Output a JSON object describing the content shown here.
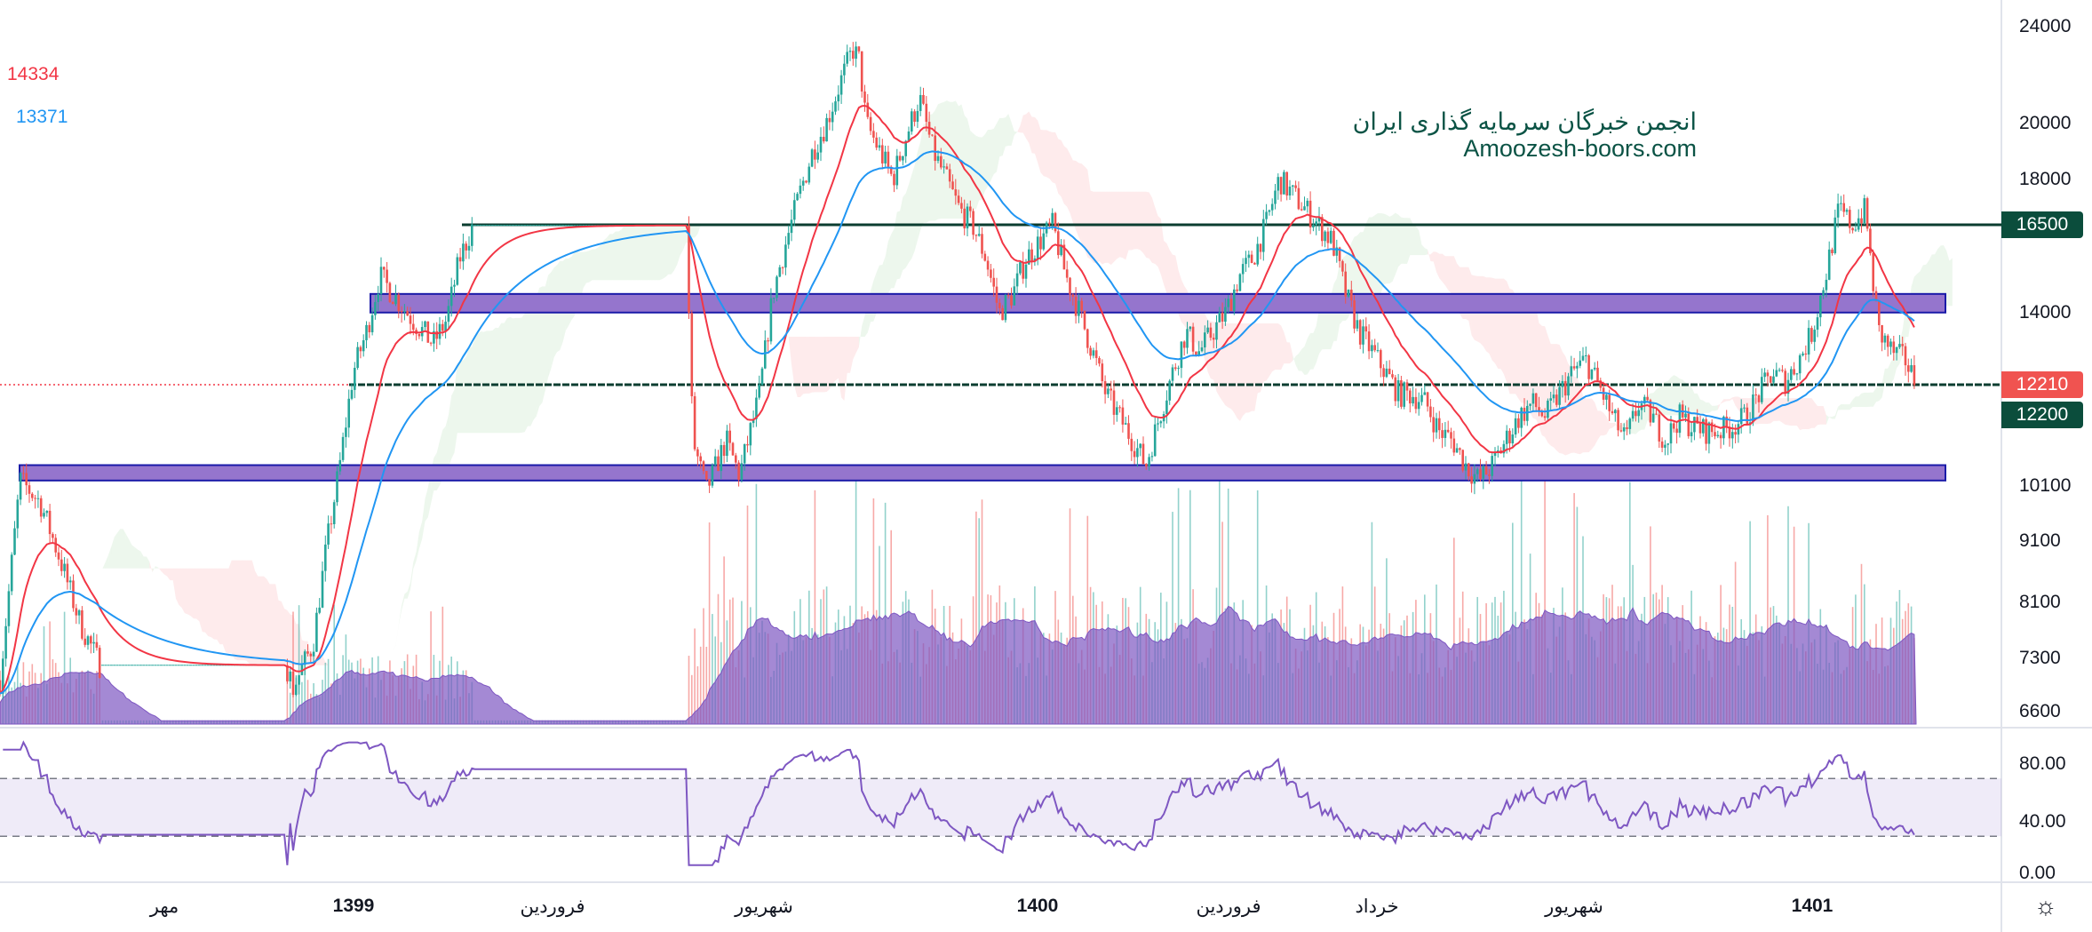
{
  "legend": {
    "ma_fast": "14334",
    "ma_slow": "13371",
    "fast_color": "#f23645",
    "slow_color": "#2196f3"
  },
  "watermark": {
    "line1": "انجمن خبرگان سرمایه گذاری ایران",
    "line2": "Amoozesh-boors.com"
  },
  "price_axis": [
    "24000",
    "20000",
    "18000",
    "14000",
    "10100",
    "9100",
    "8100",
    "7300",
    "6600"
  ],
  "price_tags": {
    "resistance": "16500",
    "last": "12210",
    "support": "12200"
  },
  "rsi_axis": [
    "80.00",
    "40.00",
    "0.00"
  ],
  "time_axis": [
    "مهر",
    "1399",
    "فروردین",
    "شهریور",
    "1400",
    "فروردین",
    "خرداد",
    "شهریور",
    "1401"
  ],
  "settings_icon": "gear-icon",
  "chart_data": {
    "type": "candlestick",
    "scale": "log",
    "ylim": [
      6600,
      24000
    ],
    "levels": [
      16500,
      12200
    ],
    "zones": [
      [
        14000,
        14500
      ],
      [
        10200,
        10500
      ]
    ],
    "halts": [
      [
        75,
        215
      ],
      [
        355,
        515
      ]
    ],
    "bars": [
      0,
      15,
      30,
      45,
      60,
      75,
      215,
      220,
      235,
      245,
      255,
      265,
      275,
      285,
      295,
      310,
      325,
      335,
      345,
      355,
      515,
      520,
      530,
      545,
      555,
      570,
      580,
      590,
      600,
      610,
      620,
      630,
      640,
      645,
      650,
      660,
      670,
      680,
      690,
      700,
      710,
      720,
      730,
      740,
      750,
      760,
      770,
      780,
      790,
      800,
      810,
      820,
      830,
      840,
      850,
      860,
      870,
      880,
      890,
      900,
      910,
      920,
      930,
      940,
      950,
      960,
      970,
      980,
      990,
      1000,
      1010,
      1020,
      1030,
      1040,
      1050,
      1060,
      1070,
      1080,
      1090,
      1100,
      1110,
      1120,
      1130,
      1140,
      1150,
      1160,
      1170,
      1180,
      1190,
      1200,
      1210,
      1220,
      1230,
      1240,
      1250,
      1260,
      1270,
      1280,
      1290,
      1300,
      1310,
      1320,
      1330,
      1340,
      1350,
      1360,
      1370,
      1380,
      1390,
      1400,
      1405,
      1410,
      1420,
      1430,
      1438
    ],
    "close": [
      7000,
      10200,
      9800,
      8800,
      7800,
      7200,
      7200,
      6900,
      7500,
      9000,
      10500,
      12500,
      13500,
      15000,
      14500,
      13800,
      13200,
      13800,
      15500,
      16500,
      16500,
      11000,
      10000,
      11000,
      10300,
      12000,
      14500,
      16000,
      17500,
      19000,
      20000,
      21500,
      23000,
      22500,
      20000,
      19000,
      18000,
      19500,
      21000,
      19000,
      18000,
      17000,
      16500,
      15500,
      14000,
      14500,
      15500,
      16000,
      16500,
      15000,
      14000,
      13000,
      12000,
      11500,
      11000,
      10500,
      11500,
      12500,
      13500,
      13000,
      13500,
      14000,
      15000,
      15500,
      16500,
      18000,
      17500,
      17000,
      16500,
      16000,
      14500,
      13500,
      13000,
      12500,
      12000,
      12000,
      11800,
      11200,
      11000,
      10500,
      10200,
      10500,
      11000,
      11500,
      11800,
      11500,
      12000,
      12500,
      12800,
      12200,
      11500,
      11000,
      11800,
      11500,
      11000,
      11500,
      11300,
      11200,
      11200,
      11300,
      11500,
      12000,
      12500,
      12300,
      12800,
      13500,
      15000,
      17000,
      16500,
      17000,
      15000,
      13500,
      13000,
      12800,
      12210
    ],
    "rsi_bands": [
      70,
      30
    ],
    "rsi_ylim": [
      0,
      100
    ]
  }
}
